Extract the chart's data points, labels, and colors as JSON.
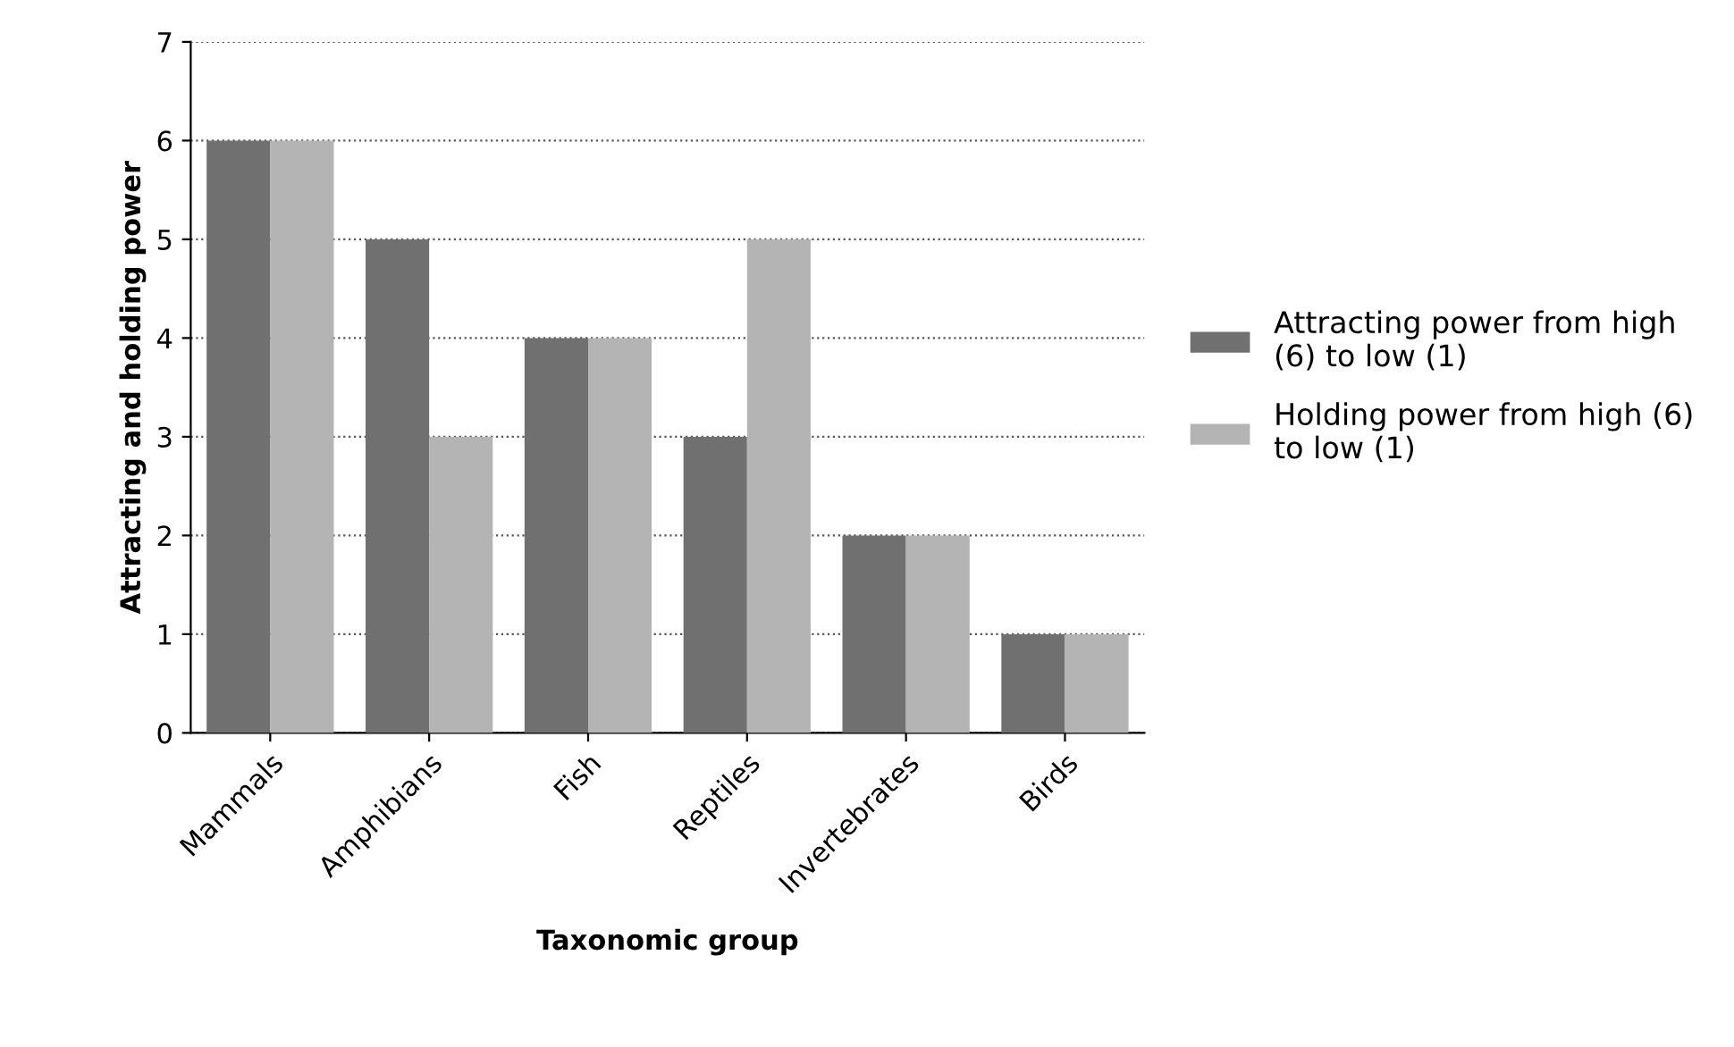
{
  "chart_data": {
    "type": "bar",
    "xlabel": "Taxonomic group",
    "ylabel": "Attracting and holding power",
    "categories": [
      "Mammals",
      "Amphibians",
      "Fish",
      "Reptiles",
      "Invertebrates",
      "Birds"
    ],
    "series": [
      {
        "name": "Attracting power from high (6) to low (1)",
        "color": "#707070",
        "values": [
          6,
          5,
          4,
          3,
          2,
          1
        ]
      },
      {
        "name": "Holding power from high (6) to low (1)",
        "color": "#b4b4b4",
        "values": [
          6,
          3,
          4,
          5,
          2,
          1
        ]
      }
    ],
    "ylim": [
      0,
      7
    ],
    "yticks": [
      0,
      1,
      2,
      3,
      4,
      5,
      6,
      7
    ],
    "grid": "y",
    "legend": "right"
  }
}
